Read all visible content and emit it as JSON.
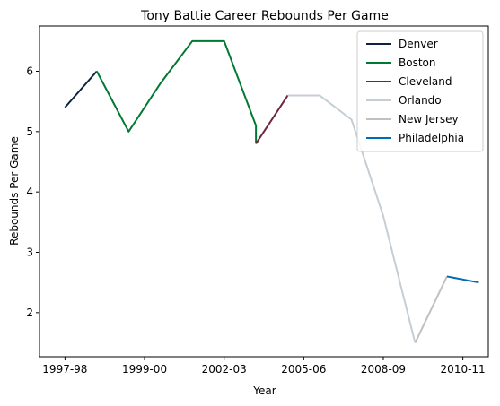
{
  "chart_data": {
    "type": "line",
    "title": "Tony Battie Career Rebounds Per Game",
    "xlabel": "Year",
    "ylabel": "Rebounds Per Game",
    "xlim": [
      -0.8,
      13.3
    ],
    "ylim": [
      1.27,
      6.75
    ],
    "x_ticks": [
      {
        "x": 0,
        "label": "1997-98"
      },
      {
        "x": 2.5,
        "label": "1999-00"
      },
      {
        "x": 5,
        "label": "2002-03"
      },
      {
        "x": 7.5,
        "label": "2005-06"
      },
      {
        "x": 10,
        "label": "2008-09"
      },
      {
        "x": 12.5,
        "label": "2010-11"
      }
    ],
    "y_ticks": [
      2,
      3,
      4,
      5,
      6
    ],
    "grid": false,
    "legend_position": "top-right",
    "series": [
      {
        "name": "Denver",
        "color": "#0e2240",
        "points": [
          [
            0,
            5.4
          ],
          [
            1,
            6.0
          ]
        ]
      },
      {
        "name": "Boston",
        "color": "#007a33",
        "points": [
          [
            1,
            6.0
          ],
          [
            2,
            5.0
          ],
          [
            3,
            5.8
          ],
          [
            4,
            6.5
          ],
          [
            5,
            6.5
          ],
          [
            6,
            5.1
          ],
          [
            6,
            4.8
          ]
        ]
      },
      {
        "name": "Cleveland",
        "color": "#6f263d",
        "points": [
          [
            6,
            4.8
          ],
          [
            7,
            5.6
          ]
        ]
      },
      {
        "name": "Orlando",
        "color": "#c4ced4",
        "points": [
          [
            7,
            5.6
          ],
          [
            8,
            5.6
          ],
          [
            9,
            5.2
          ],
          [
            10,
            3.6
          ],
          [
            11,
            1.5
          ]
        ]
      },
      {
        "name": "New Jersey",
        "color": "#bec0c2",
        "points": [
          [
            11,
            1.5
          ],
          [
            12,
            2.6
          ]
        ]
      },
      {
        "name": "Philadelphia",
        "color": "#006bb6",
        "points": [
          [
            12,
            2.6
          ],
          [
            13,
            2.5
          ]
        ]
      }
    ]
  }
}
